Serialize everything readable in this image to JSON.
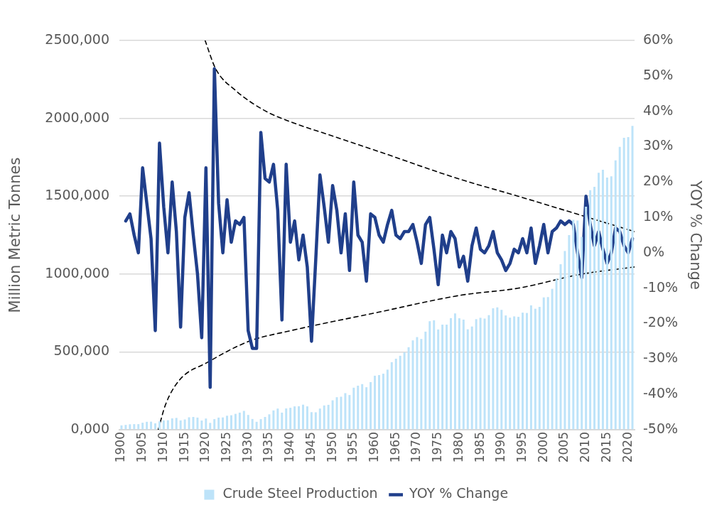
{
  "chart_data": {
    "type": "bar",
    "ylabel": "Million Metric Tonnes",
    "y2label": "YOY % Change",
    "x": [
      1900,
      1901,
      1902,
      1903,
      1904,
      1905,
      1906,
      1907,
      1908,
      1909,
      1910,
      1911,
      1912,
      1913,
      1914,
      1915,
      1916,
      1917,
      1918,
      1919,
      1920,
      1921,
      1922,
      1923,
      1924,
      1925,
      1926,
      1927,
      1928,
      1929,
      1930,
      1931,
      1932,
      1933,
      1934,
      1935,
      1936,
      1937,
      1938,
      1939,
      1940,
      1941,
      1942,
      1943,
      1944,
      1945,
      1946,
      1947,
      1948,
      1949,
      1950,
      1951,
      1952,
      1953,
      1954,
      1955,
      1956,
      1957,
      1958,
      1959,
      1960,
      1961,
      1962,
      1963,
      1964,
      1965,
      1966,
      1967,
      1968,
      1969,
      1970,
      1971,
      1972,
      1973,
      1974,
      1975,
      1976,
      1977,
      1978,
      1979,
      1980,
      1981,
      1982,
      1983,
      1984,
      1985,
      1986,
      1987,
      1988,
      1989,
      1990,
      1991,
      1992,
      1993,
      1994,
      1995,
      1996,
      1997,
      1998,
      1999,
      2000,
      2001,
      2002,
      2003,
      2004,
      2005,
      2006,
      2007,
      2008,
      2009,
      2010,
      2011,
      2012,
      2013,
      2014,
      2015,
      2016,
      2017,
      2018,
      2019,
      2020,
      2021
    ],
    "xlim": [
      1899.5,
      2021.5
    ],
    "xticks": [
      1900,
      1905,
      1910,
      1915,
      1920,
      1925,
      1930,
      1935,
      1940,
      1945,
      1950,
      1955,
      1960,
      1965,
      1970,
      1975,
      1980,
      1985,
      1990,
      1995,
      2000,
      2005,
      2010,
      2015,
      2020
    ],
    "ylim": [
      0,
      2500000
    ],
    "yticks": [
      {
        "value": 0,
        "label": "0,000"
      },
      {
        "value": 500000,
        "label": "500,000"
      },
      {
        "value": 1000000,
        "label": "1000,000"
      },
      {
        "value": 1500000,
        "label": "1500,000"
      },
      {
        "value": 2000000,
        "label": "2000,000"
      },
      {
        "value": 2500000,
        "label": "2500,000"
      }
    ],
    "y2lim": [
      -50,
      60
    ],
    "y2ticks": [
      {
        "value": -50,
        "label": "-50%"
      },
      {
        "value": -40,
        "label": "-40%"
      },
      {
        "value": -30,
        "label": "-30%"
      },
      {
        "value": -20,
        "label": "-20%"
      },
      {
        "value": -10,
        "label": "-10%"
      },
      {
        "value": 0,
        "label": "0%"
      },
      {
        "value": 10,
        "label": "10%"
      },
      {
        "value": 20,
        "label": "20%"
      },
      {
        "value": 30,
        "label": "30%"
      },
      {
        "value": 40,
        "label": "40%"
      },
      {
        "value": 50,
        "label": "50%"
      },
      {
        "value": 60,
        "label": "60%"
      }
    ],
    "grid": "y",
    "legend": "bottom",
    "marker": "none",
    "series": [
      {
        "name": "Crude Steel Production",
        "color": "#bde3f9",
        "values": [
          28000,
          31000,
          35000,
          36000,
          36000,
          45000,
          51000,
          52000,
          41000,
          54000,
          60000,
          61000,
          73000,
          76000,
          60000,
          66000,
          80000,
          82000,
          78000,
          59000,
          72000,
          44000,
          68000,
          78000,
          79000,
          90000,
          93000,
          102000,
          110000,
          121000,
          95000,
          69000,
          51000,
          68000,
          82000,
          99000,
          124000,
          136000,
          110000,
          137000,
          141000,
          150000,
          151000,
          161000,
          150000,
          113000,
          112000,
          136000,
          156000,
          160000,
          189000,
          209000,
          212000,
          235000,
          223000,
          270000,
          283000,
          293000,
          273000,
          306000,
          347000,
          351000,
          360000,
          386000,
          434000,
          456000,
          475000,
          497000,
          530000,
          574000,
          595000,
          583000,
          630000,
          697000,
          703000,
          644000,
          675000,
          675000,
          717000,
          747000,
          716000,
          707000,
          645000,
          663000,
          710000,
          719000,
          714000,
          736000,
          780000,
          786000,
          770000,
          734000,
          720000,
          728000,
          725000,
          752000,
          750000,
          799000,
          777000,
          789000,
          850000,
          852000,
          905000,
          971000,
          1063000,
          1148000,
          1250000,
          1348000,
          1343000,
          1239000,
          1433000,
          1538000,
          1560000,
          1650000,
          1670000,
          1620000,
          1627000,
          1730000,
          1817000,
          1875000,
          1880000,
          1951000
        ]
      },
      {
        "name": "YOY % Change",
        "type": "line",
        "axis": "y2",
        "color": "#203f8b",
        "x": [
          1901,
          1902,
          1903,
          1904,
          1905,
          1906,
          1907,
          1908,
          1909,
          1910,
          1911,
          1912,
          1913,
          1914,
          1915,
          1916,
          1917,
          1918,
          1919,
          1920,
          1921,
          1922,
          1923,
          1924,
          1925,
          1926,
          1927,
          1928,
          1929,
          1930,
          1931,
          1932,
          1933,
          1934,
          1935,
          1936,
          1937,
          1938,
          1939,
          1940,
          1941,
          1942,
          1943,
          1944,
          1945,
          1946,
          1947,
          1948,
          1949,
          1950,
          1951,
          1952,
          1953,
          1954,
          1955,
          1956,
          1957,
          1958,
          1959,
          1960,
          1961,
          1962,
          1963,
          1964,
          1965,
          1966,
          1967,
          1968,
          1969,
          1970,
          1971,
          1972,
          1973,
          1974,
          1975,
          1976,
          1977,
          1978,
          1979,
          1980,
          1981,
          1982,
          1983,
          1984,
          1985,
          1986,
          1987,
          1988,
          1989,
          1990,
          1991,
          1992,
          1993,
          1994,
          1995,
          1996,
          1997,
          1998,
          1999,
          2000,
          2001,
          2002,
          2003,
          2004,
          2005,
          2006,
          2007,
          2008,
          2009,
          2010,
          2011,
          2012,
          2013,
          2014,
          2015,
          2016,
          2017,
          2018,
          2019,
          2020,
          2021
        ],
        "values": [
          9,
          11,
          5,
          0,
          24,
          14,
          4,
          -22,
          31,
          13,
          0,
          20,
          6,
          -21,
          10,
          17,
          5,
          -6,
          -24,
          24,
          -38,
          52,
          14,
          0,
          15,
          3,
          9,
          8,
          10,
          -22,
          -27,
          -27,
          34,
          21,
          20,
          25,
          12,
          -19,
          25,
          3,
          9,
          -2,
          5,
          -4,
          -25,
          -2,
          22,
          13,
          3,
          19,
          12,
          0,
          11,
          -5,
          20,
          5,
          3,
          -8,
          11,
          10,
          5,
          3,
          8,
          12,
          5,
          4,
          6,
          6,
          8,
          3,
          -3,
          8,
          10,
          1,
          -9,
          5,
          0,
          6,
          4,
          -4,
          -1,
          -8,
          2,
          7,
          1,
          0,
          2,
          6,
          0,
          -2,
          -5,
          -3,
          1,
          0,
          4,
          0,
          7,
          -3,
          2,
          8,
          0,
          6,
          7,
          9,
          8,
          9,
          8,
          0,
          -7,
          16,
          8,
          2,
          6,
          1,
          -3,
          0,
          7,
          6,
          2,
          0,
          4
        ]
      },
      {
        "type": "line",
        "axis": "y2",
        "color": "#000000",
        "line_style": "dashed",
        "x": [
          1919.8,
          1922.3,
          1926.9,
          1934.2,
          1940.1,
          1950,
          1960,
          1979.6,
          1993.9,
          2010.5,
          2021.5
        ],
        "values": [
          60,
          52,
          46,
          40,
          37,
          33,
          29,
          21,
          16,
          10,
          6
        ]
      },
      {
        "type": "line",
        "axis": "y2",
        "color": "#000000",
        "line_style": "dashed",
        "x": [
          1908.7,
          1910.4,
          1913.7,
          1920.3,
          1930.2,
          1940.1,
          1960,
          1980.3,
          1993.9,
          2009.1,
          2021.5
        ],
        "values": [
          -50,
          -43,
          -36,
          -31,
          -25,
          -22,
          -17,
          -12,
          -10,
          -6,
          -4
        ]
      }
    ]
  }
}
